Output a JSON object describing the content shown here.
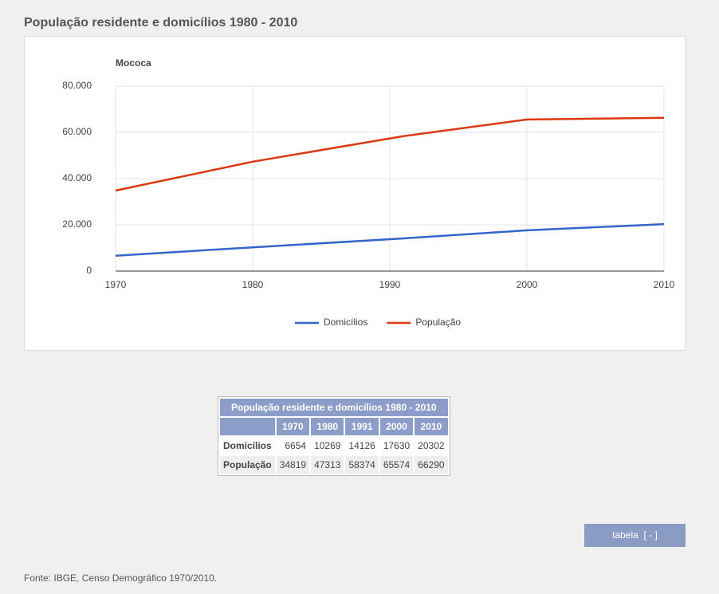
{
  "header": {
    "title": "População residente e domicílios 1980 - 2010"
  },
  "chart_data": {
    "type": "line",
    "subtitle": "Mococa",
    "x": [
      1970,
      1980,
      1991,
      2000,
      2010
    ],
    "series": [
      {
        "name": "Domicílios",
        "color": "#3366cc",
        "values": [
          6654,
          10269,
          14126,
          17630,
          20302
        ]
      },
      {
        "name": "População",
        "color": "#dc3912",
        "values": [
          34819,
          47313,
          58374,
          65574,
          66290
        ]
      }
    ],
    "xlim": [
      1970,
      2010
    ],
    "xticks": [
      1970,
      1980,
      1990,
      2000,
      2010
    ],
    "ylim": [
      0,
      80000
    ],
    "yticks": [
      0,
      {
        "value": 20000,
        "label": "20.000"
      },
      {
        "value": 40000,
        "label": "40.000"
      },
      {
        "value": 60000,
        "label": "60.000"
      },
      {
        "value": 80000,
        "label": "80.000"
      }
    ],
    "grid": true,
    "legend": "bottom"
  },
  "button": {
    "label": "tabela  [ - ]"
  },
  "footer": {
    "source": "Fonte: IBGE, Censo Demográfico 1970/2010."
  }
}
